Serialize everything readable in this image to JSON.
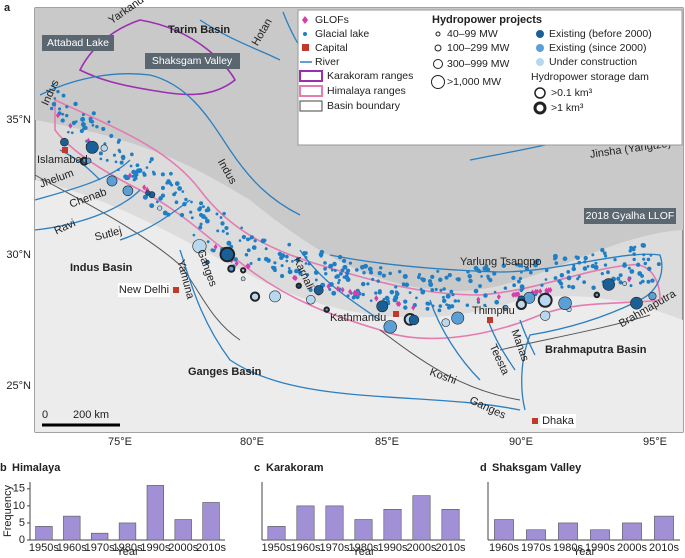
{
  "map": {
    "panel": "a",
    "lat_ticks": [
      "35°N",
      "30°N",
      "25°N"
    ],
    "lon_ticks": [
      "75°E",
      "80°E",
      "85°E",
      "90°E",
      "95°E"
    ],
    "places": {
      "yarkand": "Yarkand",
      "tarim": "Tarim Basin",
      "hotan": "Hotan",
      "attabad": "Attabad Lake",
      "shaksgam": "Shaksgam Valley",
      "indus1": "Indus",
      "islamabad": "Islamabad",
      "jhelum": "Jhelum",
      "chenab": "Chenab",
      "ravi": "Ravi",
      "sutlej": "Sutlej",
      "indus2": "Indus",
      "indus_basin": "Indus Basin",
      "new_delhi": "New Delhi",
      "yamuna": "Yamuna",
      "ganges1": "Ganges",
      "karnali": "Karnali",
      "kathmandu": "Kathmandu",
      "thimphu": "Thimphu",
      "teesta": "Teesta",
      "manas": "Manas",
      "brahmaputra_basin": "Brahmaputra Basin",
      "brahmaputra": "Brahmaputra",
      "koshi": "Koshi",
      "ganges2": "Ganges",
      "ganges_basin": "Ganges Basin",
      "dhaka": "Dhaka",
      "yarlung": "Yarlung Tsangpo",
      "jinsha": "Jinsha (Yangtze)",
      "gyalha": "2018 Gyalha LLOF"
    },
    "scale": {
      "zero": "0",
      "distance": "200 km"
    },
    "legend": {
      "glofs": "GLOFs",
      "glacial_lake": "Glacial lake",
      "capital": "Capital",
      "river": "River",
      "karakoram": "Karakoram ranges",
      "himalaya": "Himalaya ranges",
      "basin": "Basin boundary",
      "hydro_title": "Hydropower projects",
      "mw1": "40–99 MW",
      "mw2": "100–299 MW",
      "mw3": "300–999 MW",
      "mw4": ">1,000 MW",
      "before2000": "Existing (before 2000)",
      "since2000": "Existing (since 2000)",
      "construction": "Under construction",
      "storage_title": "Hydropower storage dam",
      "dam1": ">0.1 km³",
      "dam2": ">1 km³"
    }
  },
  "chart_data": [
    {
      "type": "bar",
      "panel": "b",
      "title": "Himalaya",
      "xlabel": "Year",
      "ylabel": "Frequency",
      "categories": [
        "1950s",
        "1960s",
        "1970s",
        "1980s",
        "1990s",
        "2000s",
        "2010s"
      ],
      "values": [
        4,
        7,
        2,
        5,
        16,
        6,
        11
      ],
      "color": "#a190d6",
      "ylim": [
        0,
        17
      ],
      "yticks": [
        0,
        5,
        10,
        15
      ]
    },
    {
      "type": "bar",
      "panel": "c",
      "title": "Karakoram",
      "xlabel": "Year",
      "categories": [
        "1950s",
        "1960s",
        "1970s",
        "1980s",
        "1990s",
        "2000s",
        "2010s"
      ],
      "values": [
        4,
        10,
        10,
        6,
        9,
        13,
        9
      ],
      "color": "#a190d6",
      "ylim": [
        0,
        17
      ]
    },
    {
      "type": "bar",
      "panel": "d",
      "title": "Shaksgam Valley",
      "xlabel": "Year",
      "categories": [
        "1960s",
        "1970s",
        "1980s",
        "1990s",
        "2000s",
        "2010s"
      ],
      "values": [
        6,
        3,
        5,
        3,
        5,
        7
      ],
      "color": "#a190d6",
      "ylim": [
        0,
        17
      ]
    }
  ]
}
